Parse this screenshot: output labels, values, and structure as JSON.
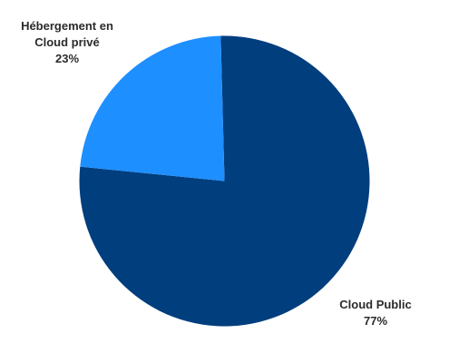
{
  "chart_data": {
    "type": "pie",
    "title": "",
    "slices": [
      {
        "label": "Cloud Public",
        "value": 77,
        "value_label": "77%",
        "color": "#003e7e"
      },
      {
        "label_lines": [
          "Hébergement en",
          "Cloud privé"
        ],
        "label": "Hébergement en Cloud privé",
        "value": 23,
        "value_label": "23%",
        "color": "#1e8fff"
      }
    ],
    "legend": "none",
    "labels": "outside"
  }
}
